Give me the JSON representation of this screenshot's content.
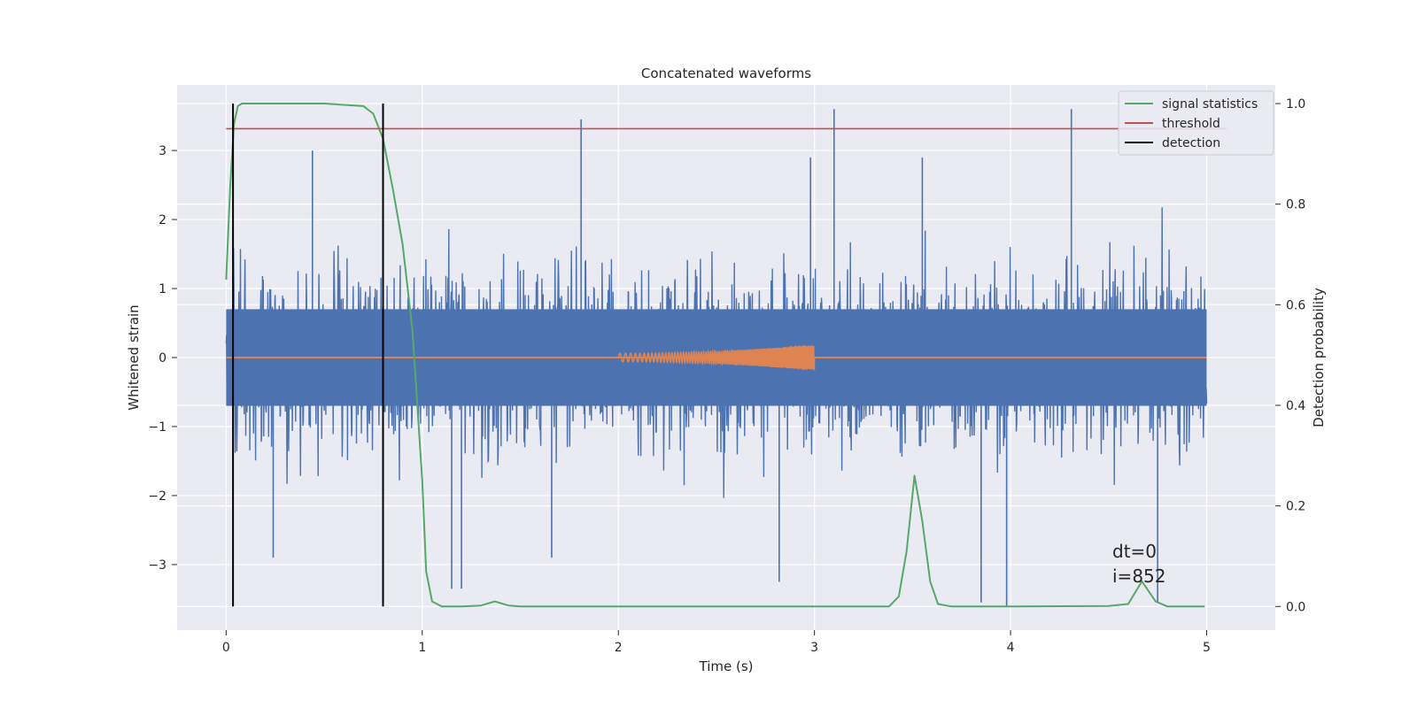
{
  "chart_data": {
    "type": "line",
    "title": "Concatenated waveforms",
    "xlabel": "Time (s)",
    "ylabel": "Whitened strain",
    "ylabel_right": "Detection probability",
    "xlim": [
      -0.25,
      5.35
    ],
    "ylim": [
      -3.95,
      3.95
    ],
    "ylim_right": [
      -0.047,
      1.037
    ],
    "x_ticks": [
      0,
      1,
      2,
      3,
      4,
      5
    ],
    "y_ticks": [
      -3,
      -2,
      -1,
      0,
      1,
      2,
      3
    ],
    "y_ticks_right": [
      0.0,
      0.2,
      0.4,
      0.6,
      0.8,
      1.0
    ],
    "y_tick_labels": [
      "−3",
      "−2",
      "−1",
      "0",
      "1",
      "2",
      "3"
    ],
    "y_tick_labels_right": [
      "0.0",
      "0.2",
      "0.4",
      "0.6",
      "0.8",
      "1.0"
    ],
    "grid": true,
    "legend_position": "top-right",
    "noise": {
      "color": "#4c72b0",
      "x_range": [
        0,
        5
      ],
      "band_half_width": 0.7,
      "typical_max": 2.5,
      "spikes": [
        {
          "x": 1.81,
          "y": 3.45
        },
        {
          "x": 3.1,
          "y": 3.6
        },
        {
          "x": 4.31,
          "y": 3.6
        },
        {
          "x": 0.44,
          "y": 3.0
        },
        {
          "x": 2.98,
          "y": 2.9
        },
        {
          "x": 3.55,
          "y": 2.9
        },
        {
          "x": 1.15,
          "y": -3.35
        },
        {
          "x": 1.2,
          "y": -3.35
        },
        {
          "x": 3.85,
          "y": -3.55
        },
        {
          "x": 3.98,
          "y": -3.6
        },
        {
          "x": 4.75,
          "y": -3.55
        },
        {
          "x": 0.24,
          "y": -2.9
        },
        {
          "x": 2.82,
          "y": -3.25
        },
        {
          "x": 1.66,
          "y": -2.9
        }
      ]
    },
    "injected_signal": {
      "color": "#dd8452",
      "baseline": [
        0,
        5
      ],
      "chirp_x": [
        2.0,
        3.0
      ],
      "amplitude_start": 0.06,
      "amplitude_end": 0.19
    },
    "series": [
      {
        "name": "signal statistics",
        "color": "#55a868",
        "axis": "right",
        "x": [
          0.0,
          0.02,
          0.04,
          0.06,
          0.08,
          0.1,
          0.2,
          0.5,
          0.7,
          0.75,
          0.8,
          0.85,
          0.9,
          0.95,
          1.0,
          1.02,
          1.05,
          1.1,
          1.2,
          1.3,
          1.37,
          1.44,
          1.5,
          2.0,
          3.0,
          3.38,
          3.43,
          3.47,
          3.51,
          3.55,
          3.59,
          3.63,
          3.7,
          4.0,
          4.5,
          4.6,
          4.67,
          4.74,
          4.8,
          4.99
        ],
        "y": [
          0.65,
          0.83,
          0.96,
          0.995,
          1.0,
          1.0,
          1.0,
          1.0,
          0.995,
          0.98,
          0.93,
          0.83,
          0.72,
          0.55,
          0.25,
          0.07,
          0.01,
          0.0,
          0.0,
          0.002,
          0.01,
          0.002,
          0.0,
          0.0,
          0.0,
          0.0,
          0.02,
          0.11,
          0.26,
          0.17,
          0.05,
          0.005,
          0.0,
          0.0,
          0.001,
          0.005,
          0.05,
          0.01,
          0.0,
          0.0
        ]
      },
      {
        "name": "threshold",
        "color": "#c44e52",
        "axis": "right",
        "x": [
          0,
          5.1
        ],
        "y": [
          0.95,
          0.95
        ]
      },
      {
        "name": "detection",
        "color": "#000000",
        "axis": "right",
        "vlines": [
          0.035,
          0.8
        ],
        "y": [
          0,
          1
        ]
      }
    ],
    "annotations": [
      "dt=0",
      "i=852"
    ]
  }
}
